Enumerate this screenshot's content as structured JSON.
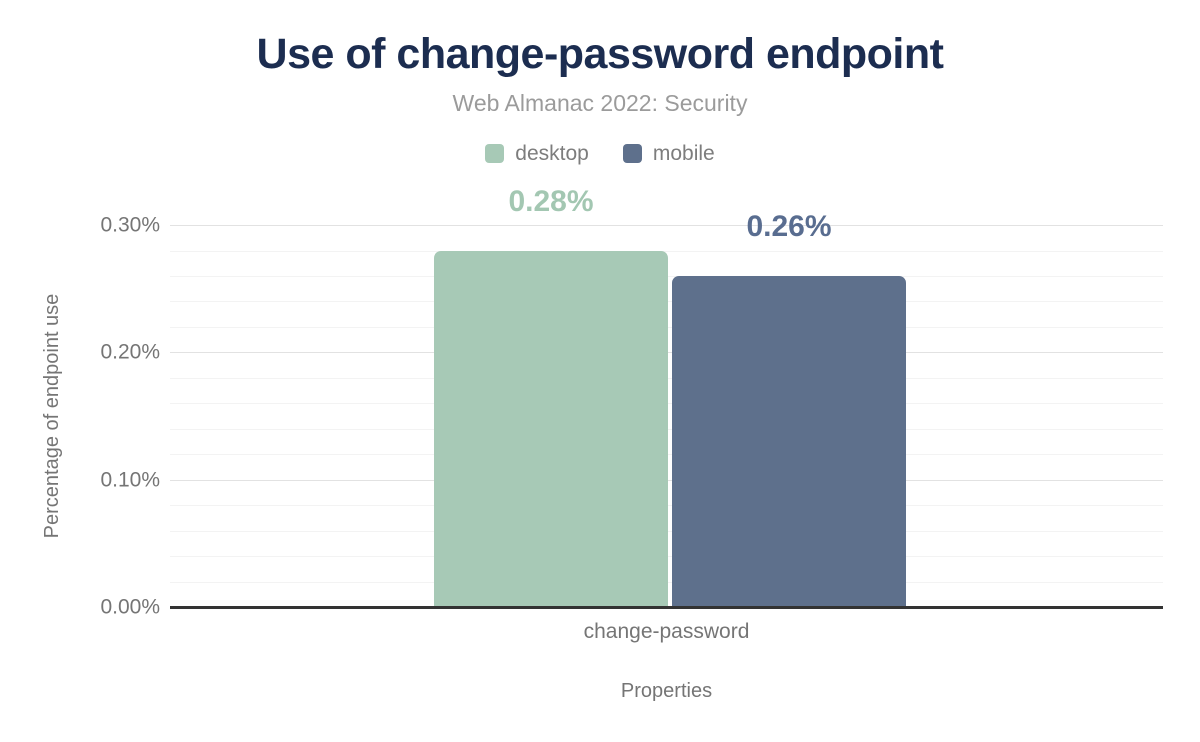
{
  "chart_data": {
    "type": "bar",
    "title": "Use of change-password endpoint",
    "subtitle": "Web Almanac 2022: Security",
    "categories": [
      "change-password"
    ],
    "series": [
      {
        "name": "desktop",
        "values": [
          0.28
        ],
        "color": "#a7c9b6",
        "label_color": "#a3c7b2",
        "data_label": "0.28%"
      },
      {
        "name": "mobile",
        "values": [
          0.26
        ],
        "color": "#5e708c",
        "label_color": "#596d90",
        "data_label": "0.26%"
      }
    ],
    "xlabel": "Properties",
    "ylabel": "Percentage of endpoint use",
    "ylim": [
      0,
      0.3
    ],
    "yticks": [
      {
        "value": 0.0,
        "label": "0.00%"
      },
      {
        "value": 0.1,
        "label": "0.10%"
      },
      {
        "value": 0.2,
        "label": "0.20%"
      },
      {
        "value": 0.3,
        "label": "0.30%"
      }
    ],
    "grid": {
      "minor_step": 0.02,
      "major_step": 0.1,
      "minor_color": "#f3f3f3",
      "major_color": "#e2e2e2"
    },
    "legend_position": "top-center",
    "colors": {
      "title": "#1c2d50",
      "subtitle": "#9b9b9b",
      "legend_text": "#7d7d7d",
      "axis_text": "#757575",
      "axis_line": "#333333",
      "background": "#ffffff"
    }
  }
}
